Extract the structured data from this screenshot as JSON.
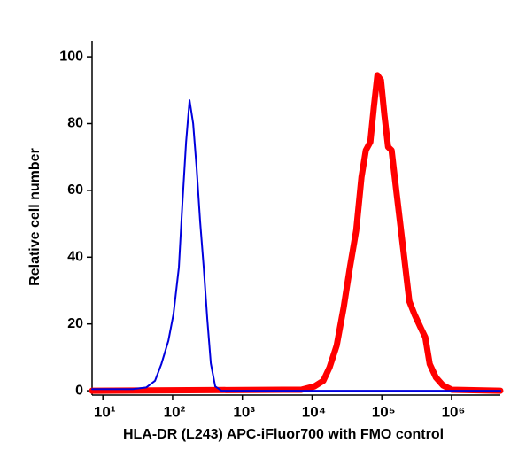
{
  "chart_data": {
    "type": "line",
    "xlabel": "HLA-DR (L243) APC-iFluor700 with FMO control",
    "ylabel": "Relative cell number",
    "xscale": "log",
    "xlim": [
      7,
      5000000
    ],
    "ylim": [
      -1.3,
      104.8
    ],
    "xticks": [
      {
        "value": 10,
        "label": "10¹"
      },
      {
        "value": 100,
        "label": "10²"
      },
      {
        "value": 1000,
        "label": "10³"
      },
      {
        "value": 10000,
        "label": "10⁴"
      },
      {
        "value": 100000,
        "label": "10⁵"
      },
      {
        "value": 1000000,
        "label": "10⁶"
      }
    ],
    "yticks": [
      0,
      20,
      40,
      60,
      80,
      100
    ],
    "series": [
      {
        "color": "#ff0000",
        "width": 7,
        "x": [
          7,
          3890,
          6980,
          10800,
          14500,
          17800,
          22500,
          28400,
          34900,
          42900,
          51100,
          59000,
          68400,
          76900,
          86500,
          97100,
          109000,
          123000,
          138000,
          164000,
          202000,
          248000,
          295000,
          362000,
          420000,
          486000,
          596000,
          753000,
          1010000,
          5000000
        ],
        "values": [
          0,
          0.3,
          0.3,
          1.3,
          3,
          7,
          13.5,
          25,
          37,
          48,
          64,
          72,
          74.5,
          85,
          94.5,
          93,
          82.5,
          73,
          72,
          58.6,
          42.7,
          26.8,
          22.8,
          18.8,
          16,
          8,
          4,
          1.6,
          0.3,
          0
        ]
      },
      {
        "color": "#0000dd",
        "width": 2,
        "x": [
          7,
          11,
          20,
          27,
          42,
          56,
          69,
          87,
          103,
          123,
          138,
          156,
          175,
          197,
          221,
          248,
          279,
          314,
          353,
          408,
          501,
          5000000
        ],
        "values": [
          0.5,
          0.5,
          0.5,
          0.5,
          1,
          3,
          8,
          15,
          23,
          37,
          56,
          74.5,
          87,
          80,
          66.6,
          50.7,
          37,
          21.5,
          8.2,
          1.3,
          0,
          0
        ]
      }
    ]
  }
}
